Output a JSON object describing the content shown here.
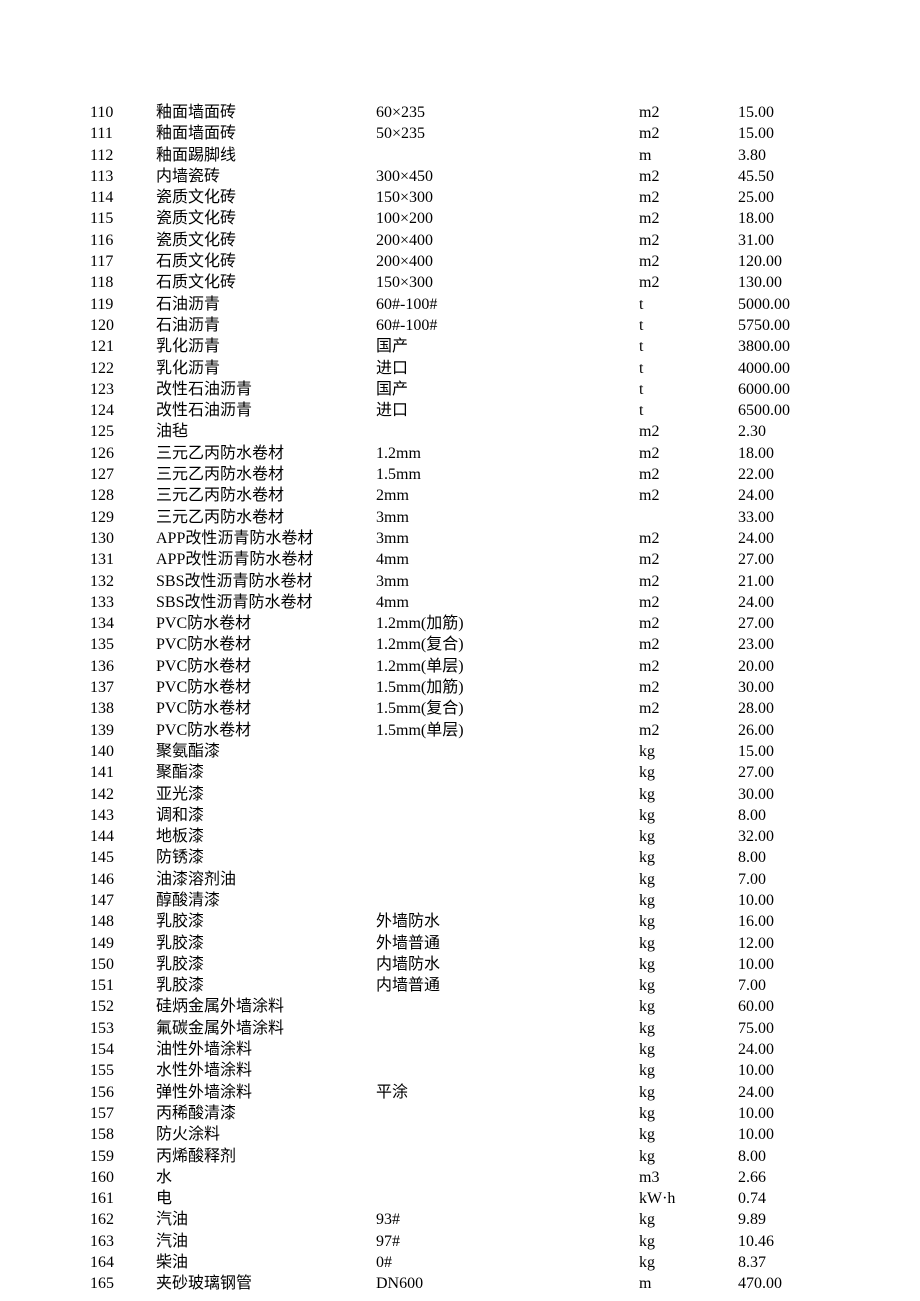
{
  "rows": [
    {
      "id": "110",
      "name": "釉面墙面砖",
      "spec": "60×235",
      "unit": "m2",
      "price": "15.00"
    },
    {
      "id": "111",
      "name": "釉面墙面砖",
      "spec": "50×235",
      "unit": "m2",
      "price": "15.00"
    },
    {
      "id": "112",
      "name": "釉面踢脚线",
      "spec": "",
      "unit": "m",
      "price": "3.80"
    },
    {
      "id": "113",
      "name": "内墙瓷砖",
      "spec": "300×450",
      "unit": "m2",
      "price": "45.50"
    },
    {
      "id": "114",
      "name": "瓷质文化砖",
      "spec": "150×300",
      "unit": "m2",
      "price": "25.00"
    },
    {
      "id": "115",
      "name": "瓷质文化砖",
      "spec": "100×200",
      "unit": "m2",
      "price": "18.00"
    },
    {
      "id": "116",
      "name": "瓷质文化砖",
      "spec": "200×400",
      "unit": "m2",
      "price": "31.00"
    },
    {
      "id": "117",
      "name": "石质文化砖",
      "spec": "200×400",
      "unit": "m2",
      "price": "120.00"
    },
    {
      "id": "118",
      "name": "石质文化砖",
      "spec": "150×300",
      "unit": "m2",
      "price": "130.00"
    },
    {
      "id": "119",
      "name": "石油沥青",
      "spec": "60#-100#",
      "unit": "t",
      "price": "5000.00"
    },
    {
      "id": "120",
      "name": "石油沥青",
      "spec": "60#-100#",
      "unit": "t",
      "price": "5750.00"
    },
    {
      "id": "121",
      "name": "乳化沥青",
      "spec": "国产",
      "unit": "t",
      "price": "3800.00"
    },
    {
      "id": "122",
      "name": "乳化沥青",
      "spec": "进口",
      "unit": "t",
      "price": "4000.00"
    },
    {
      "id": "123",
      "name": "改性石油沥青",
      "spec": "国产",
      "unit": "t",
      "price": "6000.00"
    },
    {
      "id": "124",
      "name": "改性石油沥青",
      "spec": "进口",
      "unit": "t",
      "price": "6500.00"
    },
    {
      "id": "125",
      "name": "油毡",
      "spec": "",
      "unit": "m2",
      "price": "2.30"
    },
    {
      "id": "126",
      "name": "三元乙丙防水卷材",
      "spec": "1.2mm",
      "unit": "m2",
      "price": "18.00"
    },
    {
      "id": "127",
      "name": "三元乙丙防水卷材",
      "spec": "1.5mm",
      "unit": "m2",
      "price": "22.00"
    },
    {
      "id": "128",
      "name": "三元乙丙防水卷材",
      "spec": "2mm",
      "unit": "m2",
      "price": "24.00"
    },
    {
      "id": "129",
      "name": "三元乙丙防水卷材",
      "spec": "3mm",
      "unit": "",
      "price": "33.00"
    },
    {
      "id": "130",
      "name": "APP改性沥青防水卷材",
      "spec": "3mm",
      "unit": "m2",
      "price": "24.00"
    },
    {
      "id": "131",
      "name": "APP改性沥青防水卷材",
      "spec": "4mm",
      "unit": "m2",
      "price": "27.00"
    },
    {
      "id": "132",
      "name": "SBS改性沥青防水卷材",
      "spec": "3mm",
      "unit": "m2",
      "price": "21.00"
    },
    {
      "id": "133",
      "name": "SBS改性沥青防水卷材",
      "spec": "4mm",
      "unit": "m2",
      "price": "24.00"
    },
    {
      "id": "134",
      "name": "PVC防水卷材",
      "spec": "1.2mm(加筋)",
      "unit": "m2",
      "price": "27.00"
    },
    {
      "id": "135",
      "name": "PVC防水卷材",
      "spec": "1.2mm(复合)",
      "unit": "m2",
      "price": "23.00"
    },
    {
      "id": "136",
      "name": "PVC防水卷材",
      "spec": "1.2mm(单层)",
      "unit": "m2",
      "price": "20.00"
    },
    {
      "id": "137",
      "name": "PVC防水卷材",
      "spec": "1.5mm(加筋)",
      "unit": "m2",
      "price": "30.00"
    },
    {
      "id": "138",
      "name": "PVC防水卷材",
      "spec": "1.5mm(复合)",
      "unit": "m2",
      "price": "28.00"
    },
    {
      "id": "139",
      "name": "PVC防水卷材",
      "spec": "1.5mm(单层)",
      "unit": "m2",
      "price": "26.00"
    },
    {
      "id": "140",
      "name": "聚氨酯漆",
      "spec": "",
      "unit": "kg",
      "price": "15.00"
    },
    {
      "id": "141",
      "name": "聚酯漆",
      "spec": "",
      "unit": "kg",
      "price": "27.00"
    },
    {
      "id": "142",
      "name": "亚光漆",
      "spec": "",
      "unit": "kg",
      "price": "30.00"
    },
    {
      "id": "143",
      "name": "调和漆",
      "spec": "",
      "unit": "kg",
      "price": "8.00"
    },
    {
      "id": "144",
      "name": "地板漆",
      "spec": "",
      "unit": "kg",
      "price": "32.00"
    },
    {
      "id": "145",
      "name": "防锈漆",
      "spec": "",
      "unit": "kg",
      "price": "8.00"
    },
    {
      "id": "146",
      "name": "油漆溶剂油",
      "spec": "",
      "unit": "kg",
      "price": "7.00"
    },
    {
      "id": "147",
      "name": "醇酸清漆",
      "spec": "",
      "unit": "kg",
      "price": "10.00"
    },
    {
      "id": "148",
      "name": "乳胶漆",
      "spec": "外墙防水",
      "unit": "kg",
      "price": "16.00"
    },
    {
      "id": "149",
      "name": "乳胶漆",
      "spec": "外墙普通",
      "unit": "kg",
      "price": "12.00"
    },
    {
      "id": "150",
      "name": "乳胶漆",
      "spec": "内墙防水",
      "unit": "kg",
      "price": "10.00"
    },
    {
      "id": "151",
      "name": "乳胶漆",
      "spec": "内墙普通",
      "unit": "kg",
      "price": "7.00"
    },
    {
      "id": "152",
      "name": "硅炳金属外墙涂料",
      "spec": "",
      "unit": "kg",
      "price": "60.00"
    },
    {
      "id": "153",
      "name": "氟碳金属外墙涂料",
      "spec": "",
      "unit": "kg",
      "price": "75.00"
    },
    {
      "id": "154",
      "name": "油性外墙涂料",
      "spec": "",
      "unit": "kg",
      "price": "24.00"
    },
    {
      "id": "155",
      "name": "水性外墙涂料",
      "spec": "",
      "unit": "kg",
      "price": "10.00"
    },
    {
      "id": "156",
      "name": "弹性外墙涂料",
      "spec": "平涂",
      "unit": "kg",
      "price": "24.00"
    },
    {
      "id": "157",
      "name": "丙稀酸清漆",
      "spec": "",
      "unit": "kg",
      "price": "10.00"
    },
    {
      "id": "158",
      "name": "防火涂料",
      "spec": "",
      "unit": "kg",
      "price": "10.00"
    },
    {
      "id": "159",
      "name": "丙烯酸释剂",
      "spec": "",
      "unit": "kg",
      "price": "8.00"
    },
    {
      "id": "160",
      "name": "水",
      "spec": "",
      "unit": "m3",
      "price": "2.66"
    },
    {
      "id": "161",
      "name": "电",
      "spec": "",
      "unit": "kW·h",
      "price": "0.74"
    },
    {
      "id": "162",
      "name": "汽油",
      "spec": "93#",
      "unit": "kg",
      "price": "9.89"
    },
    {
      "id": "163",
      "name": "汽油",
      "spec": "97#",
      "unit": "kg",
      "price": "10.46"
    },
    {
      "id": "164",
      "name": "柴油",
      "spec": "0#",
      "unit": "kg",
      "price": "8.37"
    },
    {
      "id": "165",
      "name": "夹砂玻璃钢管",
      "spec": "DN600",
      "unit": "m",
      "price": "470.00"
    }
  ]
}
